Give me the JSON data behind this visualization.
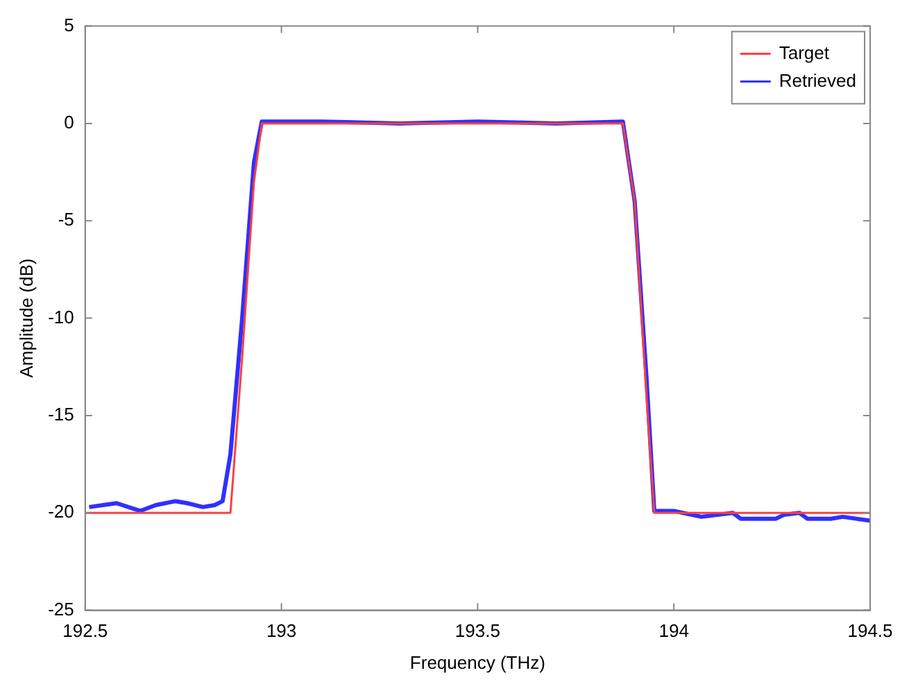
{
  "chart_data": {
    "type": "line",
    "xlabel": "Frequency (THz)",
    "ylabel": "Amplitude (dB)",
    "xlim": [
      192.5,
      194.5
    ],
    "xticks": [
      192.5,
      193,
      193.5,
      194,
      194.5
    ],
    "ylim": [
      -25,
      5
    ],
    "yticks": [
      -25,
      -20,
      -15,
      -10,
      -5,
      0,
      5
    ],
    "grid": false,
    "legend": "top right",
    "marker": "none",
    "line_style": "solid",
    "series": [
      {
        "name": "Target",
        "color": "#ff4040",
        "x": [
          192.5,
          192.87,
          192.9,
          192.93,
          192.95,
          193.5,
          193.87,
          193.9,
          193.93,
          193.95,
          194.5
        ],
        "values": [
          -20,
          -20,
          -12,
          -3,
          0,
          0,
          0,
          -4,
          -14,
          -20,
          -20
        ]
      },
      {
        "name": "Retrieved",
        "color": "#3030ff",
        "x": [
          192.51,
          192.58,
          192.61,
          192.64,
          192.68,
          192.73,
          192.76,
          192.8,
          192.83,
          192.85,
          192.87,
          192.9,
          192.93,
          192.95,
          193.1,
          193.3,
          193.5,
          193.7,
          193.87,
          193.9,
          193.93,
          193.95,
          194,
          194.07,
          194.15,
          194.17,
          194.26,
          194.28,
          194.32,
          194.34,
          194.4,
          194.43,
          194.5
        ],
        "values": [
          -19.7,
          -19.5,
          -19.7,
          -19.9,
          -19.6,
          -19.4,
          -19.5,
          -19.7,
          -19.6,
          -19.4,
          -17,
          -10,
          -2,
          0.1,
          0.1,
          0,
          0.1,
          0,
          0.1,
          -4,
          -13,
          -19.9,
          -19.9,
          -20.2,
          -20,
          -20.3,
          -20.3,
          -20.1,
          -20,
          -20.3,
          -20.3,
          -20.2,
          -20.4
        ]
      }
    ]
  }
}
